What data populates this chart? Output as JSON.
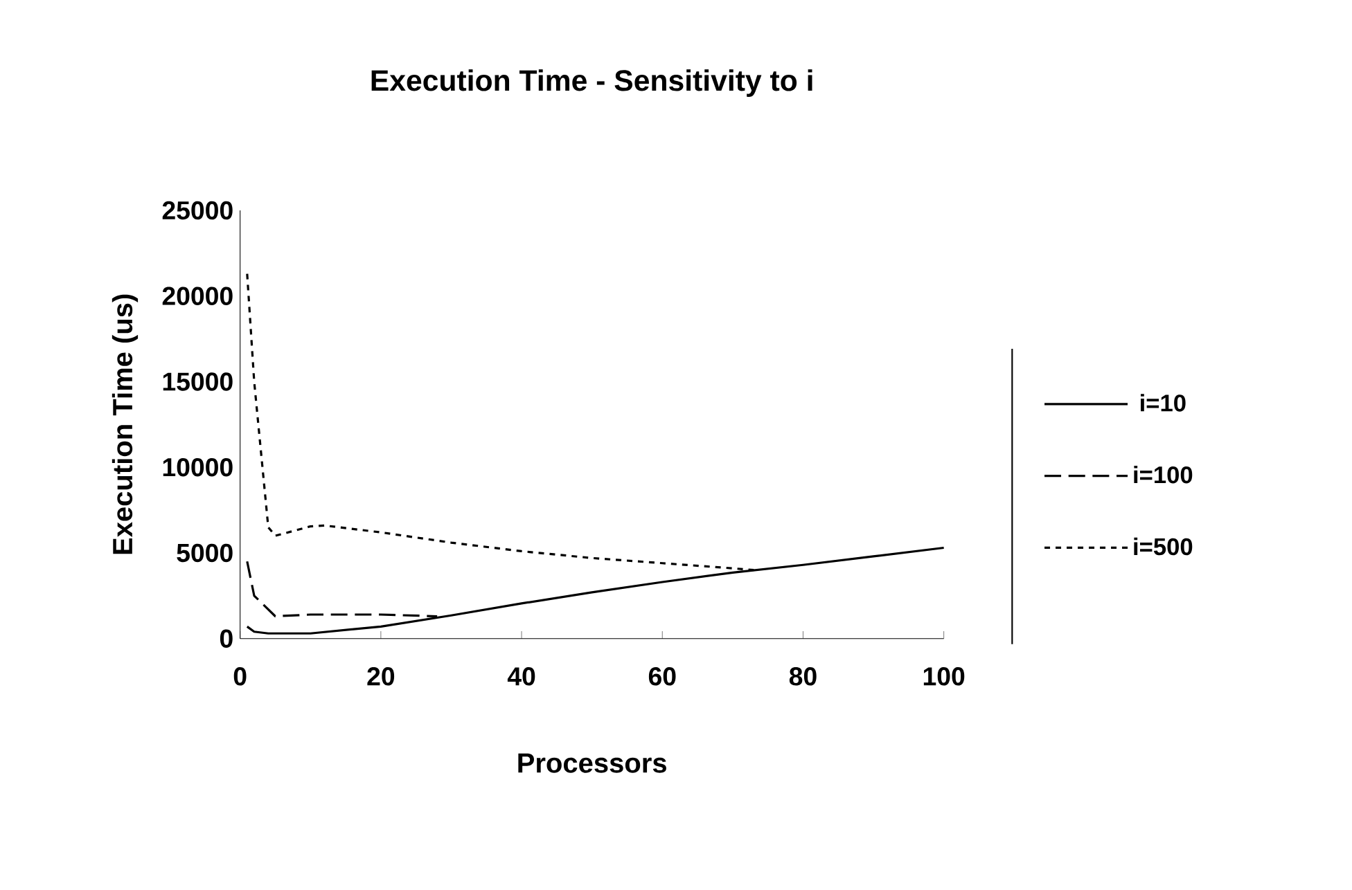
{
  "chart_data": {
    "type": "line",
    "title": "Execution Time - Sensitivity to i",
    "xlabel": "Processors",
    "ylabel": "Execution Time (us)",
    "xlim": [
      0,
      100
    ],
    "xticks": [
      0,
      20,
      40,
      60,
      80,
      100
    ],
    "ylim": [
      0,
      25000
    ],
    "yticks": [
      0,
      5000,
      10000,
      15000,
      20000,
      25000
    ],
    "grid": false,
    "legend": "right",
    "series": [
      {
        "name": "i=10",
        "color": "#000000",
        "line_style": "solid",
        "x": [
          1,
          2,
          4,
          10,
          20,
          30,
          40,
          50,
          60,
          70,
          80,
          90,
          100
        ],
        "values": [
          700,
          400,
          300,
          300,
          700,
          1350,
          2050,
          2700,
          3300,
          3850,
          4300,
          4800,
          5300
        ]
      },
      {
        "name": "i=100",
        "color": "#000000",
        "line_style": "dashed",
        "x": [
          1,
          2,
          5,
          10,
          20,
          28
        ],
        "values": [
          4500,
          2500,
          1300,
          1400,
          1400,
          1300
        ]
      },
      {
        "name": "i=500",
        "color": "#000000",
        "line_style": "dotted",
        "x": [
          1,
          2,
          4,
          5,
          10,
          12,
          20,
          30,
          40,
          50,
          60,
          70,
          73
        ],
        "values": [
          21300,
          15000,
          6500,
          6000,
          6550,
          6600,
          6200,
          5600,
          5100,
          4700,
          4400,
          4100,
          4000
        ]
      }
    ]
  }
}
